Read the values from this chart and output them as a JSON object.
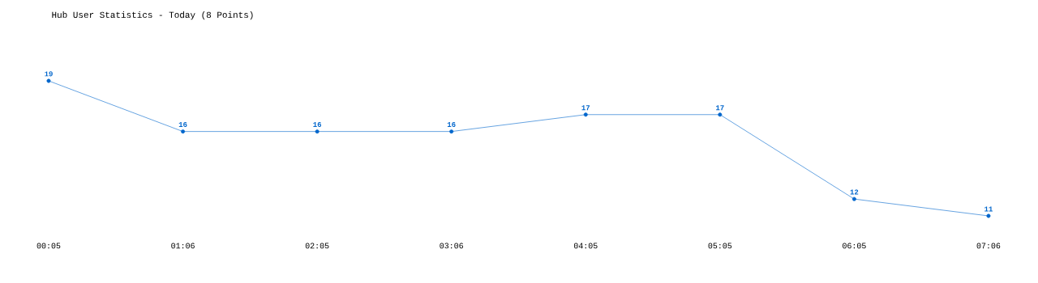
{
  "chart_data": {
    "type": "line",
    "title": "Hub User Statistics - Today (8 Points)",
    "categories": [
      "00:05",
      "01:06",
      "02:05",
      "03:06",
      "04:05",
      "05:05",
      "06:05",
      "07:06"
    ],
    "values": [
      19,
      16,
      16,
      16,
      17,
      17,
      12,
      11
    ],
    "color": "#0066cc",
    "marker": "circle",
    "data_labels": true
  }
}
